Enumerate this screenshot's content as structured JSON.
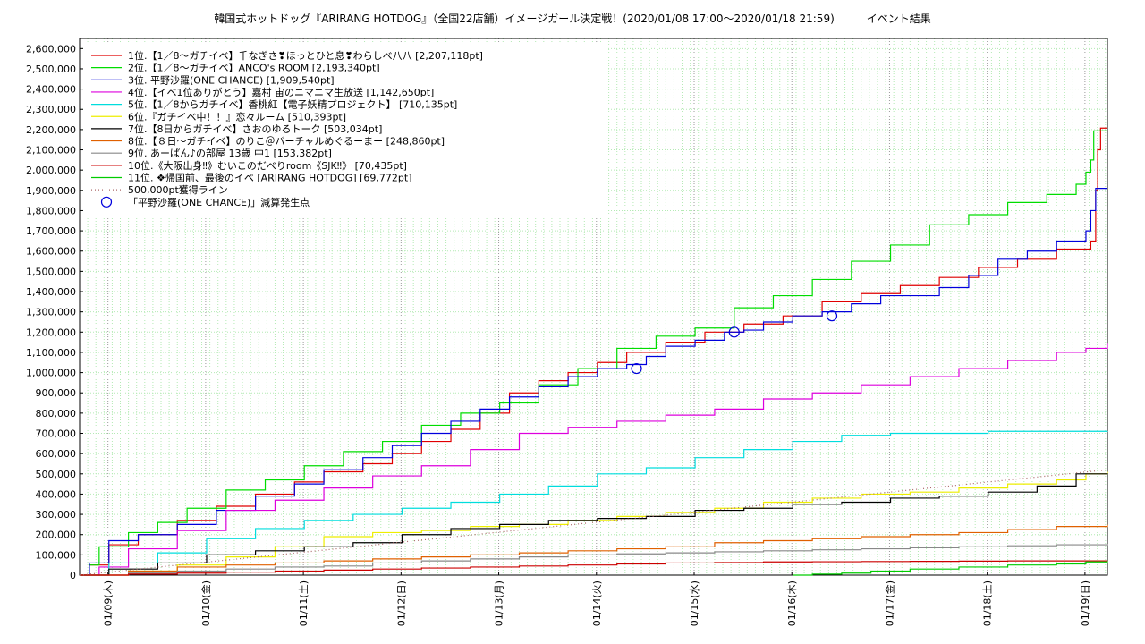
{
  "chart_data": {
    "type": "line",
    "title": "韓国式ホットドッグ『ARIRANG HOTDOG』（全国22店舗）イメージガール決定戦！(2020/01/08 17:00〜2020/01/18 21:59)　　　イベント結果",
    "xlabel": "",
    "ylabel": "",
    "ylim": [
      0,
      2650000
    ],
    "xlim": [
      0,
      10.52
    ],
    "y_ticks": [
      0,
      100000,
      200000,
      300000,
      400000,
      500000,
      600000,
      700000,
      800000,
      900000,
      1000000,
      1100000,
      1200000,
      1300000,
      1400000,
      1500000,
      1600000,
      1700000,
      1800000,
      1900000,
      2000000,
      2100000,
      2200000,
      2300000,
      2400000,
      2500000,
      2600000
    ],
    "y_tick_labels": [
      "0",
      "100,000",
      "200,000",
      "300,000",
      "400,000",
      "500,000",
      "600,000",
      "700,000",
      "800,000",
      "900,000",
      "1,000,000",
      "1,100,000",
      "1,200,000",
      "1,300,000",
      "1,400,000",
      "1,500,000",
      "1,600,000",
      "1,700,000",
      "1,800,000",
      "1,900,000",
      "2,000,000",
      "2,100,000",
      "2,200,000",
      "2,300,000",
      "2,400,000",
      "2,500,000",
      "2,600,000"
    ],
    "x_ticks": [
      0.29,
      1.29,
      2.29,
      3.29,
      4.29,
      5.29,
      6.29,
      7.29,
      8.29,
      9.29,
      10.29
    ],
    "x_tick_labels": [
      "01/09(木)",
      "01/10(金)",
      "01/11(土)",
      "01/12(日)",
      "01/13(月)",
      "01/14(火)",
      "01/15(水)",
      "01/16(木)",
      "01/17(金)",
      "01/18(土)",
      "01/19(日)"
    ],
    "grid": true,
    "legend_position": "top-left",
    "series": [
      {
        "name": "1位.【1／8〜ガチイベ】千なぎさ❣ほっとひと息❣わらしべ八八 [2,207,118pt]",
        "color": "#e00000",
        "x": [
          0,
          0.1,
          0.3,
          0.6,
          1.0,
          1.4,
          1.8,
          2.2,
          2.5,
          2.9,
          3.2,
          3.5,
          3.8,
          4.1,
          4.4,
          4.7,
          5.0,
          5.3,
          5.6,
          6.0,
          6.4,
          6.8,
          7.2,
          7.6,
          8.0,
          8.4,
          8.8,
          9.2,
          9.6,
          10.0,
          10.3,
          10.35,
          10.4,
          10.42,
          10.45,
          10.52
        ],
        "y": [
          0,
          50000,
          150000,
          200000,
          270000,
          340000,
          400000,
          460000,
          510000,
          550000,
          600000,
          660000,
          720000,
          800000,
          900000,
          960000,
          1000000,
          1050000,
          1100000,
          1150000,
          1200000,
          1240000,
          1280000,
          1350000,
          1390000,
          1430000,
          1470000,
          1520000,
          1560000,
          1610000,
          1610000,
          1650000,
          1900000,
          2100000,
          2207118,
          2207118
        ]
      },
      {
        "name": "2位.【1／8〜ガチイベ】ANCO's ROOM [2,193,340pt]",
        "color": "#00dd00",
        "x": [
          0,
          0.1,
          0.2,
          0.5,
          0.8,
          1.1,
          1.5,
          1.9,
          2.3,
          2.7,
          3.1,
          3.5,
          3.9,
          4.3,
          4.7,
          5.1,
          5.5,
          5.9,
          6.3,
          6.7,
          7.1,
          7.5,
          7.9,
          8.3,
          8.7,
          9.1,
          9.5,
          9.9,
          10.2,
          10.3,
          10.35,
          10.38,
          10.52
        ],
        "y": [
          0,
          50000,
          140000,
          210000,
          260000,
          330000,
          420000,
          470000,
          540000,
          610000,
          660000,
          740000,
          800000,
          850000,
          940000,
          1020000,
          1120000,
          1180000,
          1220000,
          1320000,
          1380000,
          1460000,
          1550000,
          1630000,
          1730000,
          1780000,
          1840000,
          1880000,
          1930000,
          1990000,
          2050000,
          2193340,
          2193340
        ]
      },
      {
        "name": "3位. 平野沙羅(ONE CHANCE) [1,909,540pt]",
        "color": "#0000dd",
        "x": [
          0,
          0.1,
          0.3,
          0.6,
          1.0,
          1.4,
          1.8,
          2.2,
          2.5,
          2.9,
          3.2,
          3.5,
          3.8,
          4.1,
          4.4,
          4.7,
          5.0,
          5.3,
          5.6,
          5.8,
          6.0,
          6.3,
          6.6,
          6.8,
          7.0,
          7.3,
          7.6,
          7.9,
          8.2,
          8.5,
          8.8,
          9.1,
          9.4,
          9.7,
          10.0,
          10.3,
          10.35,
          10.4,
          10.52
        ],
        "y": [
          0,
          60000,
          170000,
          200000,
          250000,
          320000,
          390000,
          450000,
          520000,
          580000,
          640000,
          700000,
          760000,
          820000,
          880000,
          930000,
          980000,
          1020000,
          1040000,
          1080000,
          1130000,
          1160000,
          1200000,
          1210000,
          1250000,
          1280000,
          1300000,
          1340000,
          1380000,
          1380000,
          1420000,
          1480000,
          1560000,
          1600000,
          1650000,
          1700000,
          1800000,
          1909540,
          1909540
        ]
      },
      {
        "name": "4位.【イベ1位ありがとう】嘉村 宙のニマニマ生放送 [1,142,650pt]",
        "color": "#dd00dd",
        "x": [
          0,
          0.2,
          0.5,
          1.0,
          1.5,
          2.0,
          2.5,
          3.0,
          3.5,
          4.0,
          4.5,
          5.0,
          5.5,
          6.0,
          6.5,
          7.0,
          7.5,
          8.0,
          8.5,
          9.0,
          9.5,
          10.0,
          10.3,
          10.52
        ],
        "y": [
          0,
          40000,
          130000,
          220000,
          320000,
          370000,
          430000,
          490000,
          540000,
          620000,
          700000,
          730000,
          760000,
          790000,
          820000,
          870000,
          900000,
          940000,
          980000,
          1020000,
          1060000,
          1100000,
          1120000,
          1142650
        ]
      },
      {
        "name": "5位.【1／8からガチイベ】香桃紅【電子妖精プロジェクト】 [710,135pt]",
        "color": "#00dddd",
        "x": [
          0,
          0.3,
          0.8,
          1.3,
          1.8,
          2.3,
          2.8,
          3.3,
          3.8,
          4.3,
          4.8,
          5.3,
          5.8,
          6.3,
          6.8,
          7.3,
          7.8,
          8.3,
          8.8,
          9.3,
          9.8,
          10.52
        ],
        "y": [
          0,
          60000,
          110000,
          180000,
          230000,
          270000,
          300000,
          330000,
          360000,
          400000,
          440000,
          500000,
          530000,
          580000,
          620000,
          660000,
          690000,
          700000,
          700000,
          710000,
          710000,
          710135
        ]
      },
      {
        "name": "6位.『ガチイベ中！！』恋々ルーム [510,393pt]",
        "color": "#eeee00",
        "x": [
          0,
          0.5,
          1.0,
          1.5,
          2.0,
          2.5,
          3.0,
          3.5,
          4.0,
          4.5,
          5.0,
          5.5,
          6.0,
          6.5,
          7.0,
          7.5,
          8.0,
          8.5,
          9.0,
          9.5,
          10.0,
          10.3,
          10.52
        ],
        "y": [
          0,
          20000,
          50000,
          90000,
          140000,
          190000,
          210000,
          220000,
          240000,
          250000,
          270000,
          290000,
          310000,
          330000,
          360000,
          380000,
          400000,
          410000,
          430000,
          450000,
          470000,
          500000,
          510393
        ]
      },
      {
        "name": "7位.【8日からガチイベ】さおのゆるトーク [503,034pt]",
        "color": "#000000",
        "x": [
          0,
          0.3,
          0.8,
          1.3,
          1.8,
          2.3,
          2.8,
          3.3,
          3.8,
          4.3,
          4.8,
          5.3,
          5.8,
          6.3,
          6.8,
          7.3,
          7.8,
          8.3,
          8.8,
          9.3,
          9.8,
          10.2,
          10.52
        ],
        "y": [
          0,
          30000,
          60000,
          100000,
          120000,
          140000,
          160000,
          200000,
          230000,
          250000,
          270000,
          280000,
          290000,
          320000,
          330000,
          350000,
          360000,
          380000,
          390000,
          410000,
          440000,
          500000,
          503034
        ]
      },
      {
        "name": "8位.【８日〜ガチイベ】のりこ＠バーチャルめぐるーまー [248,860pt]",
        "color": "#e06000",
        "x": [
          0,
          0.5,
          1.0,
          1.5,
          2.0,
          2.5,
          3.0,
          3.5,
          4.0,
          4.5,
          5.0,
          5.5,
          6.0,
          6.5,
          7.0,
          7.5,
          8.0,
          8.5,
          9.0,
          9.5,
          10.0,
          10.52
        ],
        "y": [
          0,
          20000,
          40000,
          50000,
          60000,
          70000,
          80000,
          90000,
          100000,
          110000,
          120000,
          130000,
          140000,
          160000,
          170000,
          180000,
          190000,
          200000,
          210000,
          225000,
          240000,
          248860
        ]
      },
      {
        "name": "9位. あーぱん♪の部屋 13歳 中1 [153,382pt]",
        "color": "#888888",
        "x": [
          0,
          0.5,
          1.0,
          1.5,
          2.0,
          2.5,
          3.0,
          3.5,
          4.0,
          4.5,
          5.0,
          5.5,
          6.0,
          6.5,
          7.0,
          7.5,
          8.0,
          8.5,
          9.0,
          9.5,
          10.0,
          10.52
        ],
        "y": [
          0,
          10000,
          20000,
          30000,
          40000,
          45000,
          60000,
          70000,
          80000,
          90000,
          100000,
          105000,
          110000,
          115000,
          120000,
          125000,
          130000,
          135000,
          140000,
          145000,
          150000,
          153382
        ]
      },
      {
        "name": "10位.《大阪出身‼》むいこのだべりroom《SJK‼》 [70,435pt]",
        "color": "#cc0000",
        "x": [
          0,
          0.5,
          1.0,
          1.5,
          2.0,
          2.5,
          3.0,
          3.5,
          4.0,
          4.5,
          5.0,
          5.5,
          6.0,
          6.5,
          7.0,
          7.5,
          8.0,
          8.5,
          9.0,
          9.5,
          10.0,
          10.52
        ],
        "y": [
          0,
          5000,
          10000,
          15000,
          20000,
          25000,
          30000,
          35000,
          40000,
          45000,
          50000,
          55000,
          60000,
          62000,
          65000,
          66000,
          67000,
          68000,
          69000,
          70000,
          70200,
          70435
        ]
      },
      {
        "name": "11位. ❖帰国前、最後のイベ [ARIRANG HOTDOG] [69,772pt]",
        "color": "#00cc00",
        "x": [
          7.3,
          7.5,
          7.8,
          8.1,
          8.5,
          9.0,
          9.5,
          10.0,
          10.3,
          10.52
        ],
        "y": [
          0,
          5000,
          10000,
          20000,
          30000,
          40000,
          50000,
          55000,
          65000,
          69772
        ]
      },
      {
        "name": "500,000pt獲得ライン",
        "color": "#aa6666",
        "dotted": true,
        "x": [
          0,
          10.52
        ],
        "y": [
          0,
          520000
        ]
      }
    ],
    "markers": {
      "name": "「平野沙羅(ONE CHANCE)」減算発生点",
      "color": "#0000dd",
      "x": [
        5.7,
        6.7,
        7.7
      ],
      "y": [
        1020000,
        1200000,
        1280000
      ]
    }
  }
}
